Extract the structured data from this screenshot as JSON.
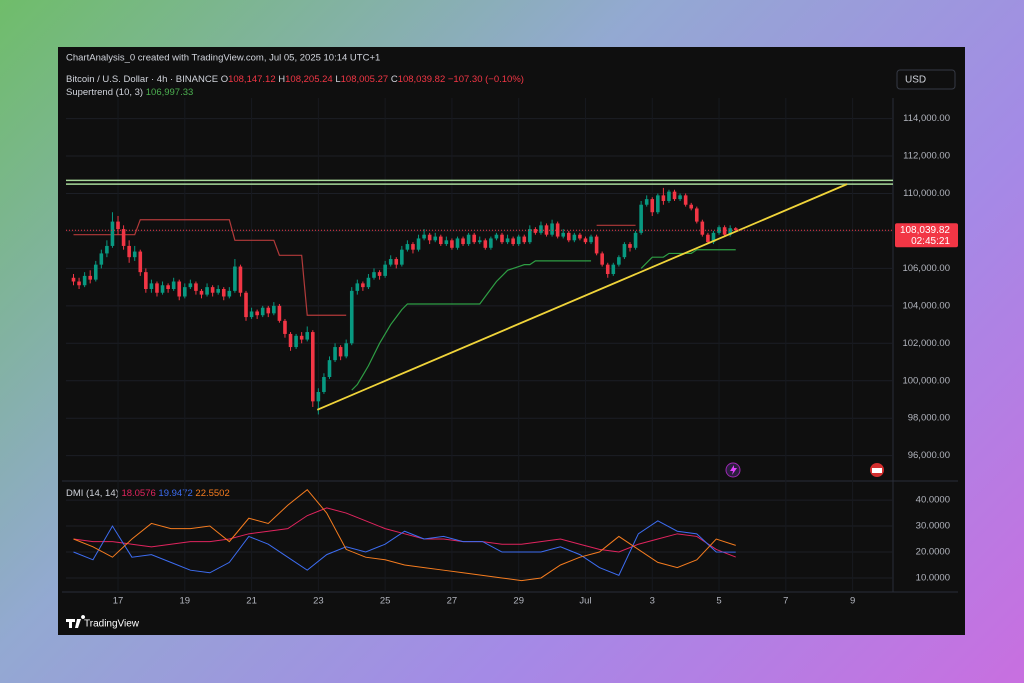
{
  "watermark": "ChartAnalysis_0 created with TradingView.com, Jul 05, 2025 10:14 UTC+1",
  "footer": "TradingView",
  "chart_data": {
    "type": "candlestick",
    "legend": {
      "symbol": "Bitcoin / U.S. Dollar · 4h · BINANCE",
      "o": "O",
      "open": "108,147.12",
      "h": "H",
      "high": "108,205.24",
      "l": "L",
      "low": "108,005.27",
      "c": "C",
      "close": "108,039.82",
      "change": "−107.30 (−0.10%)"
    },
    "currency": "USD",
    "up_color": "#089981",
    "down_color": "#f23645",
    "ylim": [
      94700,
      115100
    ],
    "yticks": [
      {
        "value": 96000,
        "label": "96,000.00"
      },
      {
        "value": 98000,
        "label": "98,000.00"
      },
      {
        "value": 100000,
        "label": "100,000.00"
      },
      {
        "value": 102000,
        "label": "102,000.00"
      },
      {
        "value": 104000,
        "label": "104,000.00"
      },
      {
        "value": 106000,
        "label": "106,000.00"
      },
      {
        "value": 108000,
        "label": "108,000.00"
      },
      {
        "value": 110000,
        "label": "110,000.00"
      },
      {
        "value": 112000,
        "label": "112,000.00"
      },
      {
        "value": 114000,
        "label": "114,000.00"
      }
    ],
    "xtick_labels": [
      "17",
      "19",
      "21",
      "23",
      "25",
      "27",
      "29",
      "Jul",
      "3",
      "5",
      "7",
      "9"
    ],
    "price_label": "108,039.82",
    "countdown": "02:45:21",
    "candles": [
      [
        105500,
        105700,
        105100,
        105300
      ],
      [
        105300,
        105500,
        104900,
        105100
      ],
      [
        105100,
        105800,
        105000,
        105600
      ],
      [
        105600,
        105900,
        105200,
        105400
      ],
      [
        105400,
        106400,
        105300,
        106200
      ],
      [
        106200,
        107000,
        106000,
        106800
      ],
      [
        106800,
        107500,
        106600,
        107200
      ],
      [
        107200,
        109000,
        107100,
        108500
      ],
      [
        108500,
        108800,
        107800,
        108100
      ],
      [
        108100,
        108300,
        107000,
        107200
      ],
      [
        107200,
        107500,
        106300,
        106600
      ],
      [
        106600,
        107200,
        106400,
        106900
      ],
      [
        106900,
        107000,
        105600,
        105800
      ],
      [
        105800,
        106000,
        104700,
        104900
      ],
      [
        104900,
        105400,
        104700,
        105200
      ],
      [
        105200,
        105300,
        104500,
        104700
      ],
      [
        104700,
        105300,
        104600,
        105100
      ],
      [
        105100,
        105200,
        104700,
        104900
      ],
      [
        104900,
        105500,
        104800,
        105300
      ],
      [
        105300,
        105400,
        104300,
        104500
      ],
      [
        104500,
        105200,
        104400,
        105000
      ],
      [
        105000,
        105400,
        104900,
        105200
      ],
      [
        105200,
        105300,
        104600,
        104800
      ],
      [
        104800,
        104900,
        104400,
        104600
      ],
      [
        104600,
        105200,
        104500,
        105000
      ],
      [
        105000,
        105100,
        104500,
        104700
      ],
      [
        104700,
        105100,
        104600,
        104900
      ],
      [
        104900,
        105000,
        104300,
        104500
      ],
      [
        104500,
        105000,
        104400,
        104800
      ],
      [
        104800,
        106500,
        104700,
        106100
      ],
      [
        106100,
        106200,
        104500,
        104700
      ],
      [
        104700,
        104800,
        103200,
        103400
      ],
      [
        103400,
        103900,
        103300,
        103700
      ],
      [
        103700,
        103800,
        103300,
        103500
      ],
      [
        103500,
        104000,
        103400,
        103900
      ],
      [
        103900,
        104000,
        103400,
        103600
      ],
      [
        103600,
        104200,
        103500,
        104000
      ],
      [
        104000,
        104100,
        103100,
        103200
      ],
      [
        103200,
        103300,
        102300,
        102500
      ],
      [
        102500,
        102600,
        101600,
        101800
      ],
      [
        101800,
        102500,
        101700,
        102400
      ],
      [
        102400,
        102600,
        102000,
        102200
      ],
      [
        102200,
        102900,
        102100,
        102600
      ],
      [
        102600,
        102700,
        98600,
        98900
      ],
      [
        98900,
        99600,
        98200,
        99400
      ],
      [
        99400,
        100400,
        99300,
        100200
      ],
      [
        100200,
        101300,
        100100,
        101100
      ],
      [
        101100,
        102000,
        101000,
        101800
      ],
      [
        101800,
        101900,
        101100,
        101300
      ],
      [
        101300,
        102200,
        101200,
        102000
      ],
      [
        102000,
        105000,
        101900,
        104800
      ],
      [
        104800,
        105400,
        104600,
        105200
      ],
      [
        105200,
        105300,
        104800,
        105000
      ],
      [
        105000,
        105700,
        104900,
        105500
      ],
      [
        105500,
        106000,
        105400,
        105800
      ],
      [
        105800,
        105900,
        105400,
        105600
      ],
      [
        105600,
        106400,
        105500,
        106200
      ],
      [
        106200,
        106700,
        106100,
        106500
      ],
      [
        106500,
        106600,
        106000,
        106200
      ],
      [
        106200,
        107200,
        106100,
        107000
      ],
      [
        107000,
        107500,
        106900,
        107300
      ],
      [
        107300,
        107400,
        106800,
        107000
      ],
      [
        107000,
        107800,
        106900,
        107600
      ],
      [
        107600,
        108100,
        107500,
        107800
      ],
      [
        107800,
        107900,
        107300,
        107500
      ],
      [
        107500,
        107900,
        107400,
        107700
      ],
      [
        107700,
        107800,
        107200,
        107300
      ],
      [
        107300,
        107700,
        107200,
        107500
      ],
      [
        107500,
        107600,
        107000,
        107100
      ],
      [
        107100,
        107700,
        107000,
        107600
      ],
      [
        107600,
        107700,
        107200,
        107300
      ],
      [
        107300,
        107900,
        107200,
        107800
      ],
      [
        107800,
        107900,
        107300,
        107400
      ],
      [
        107400,
        107700,
        107300,
        107500
      ],
      [
        107500,
        107600,
        107000,
        107100
      ],
      [
        107100,
        107700,
        107000,
        107600
      ],
      [
        107600,
        107900,
        107500,
        107800
      ],
      [
        107800,
        107900,
        107300,
        107400
      ],
      [
        107400,
        107800,
        107300,
        107600
      ],
      [
        107600,
        107700,
        107200,
        107300
      ],
      [
        107300,
        107800,
        107200,
        107700
      ],
      [
        107700,
        107800,
        107300,
        107400
      ],
      [
        107400,
        108300,
        107300,
        108100
      ],
      [
        108100,
        108200,
        107800,
        107900
      ],
      [
        107900,
        108500,
        107800,
        108300
      ],
      [
        108300,
        108400,
        107700,
        107800
      ],
      [
        107800,
        108600,
        107700,
        108400
      ],
      [
        108400,
        108500,
        107600,
        107700
      ],
      [
        107700,
        108100,
        107600,
        107900
      ],
      [
        107900,
        108000,
        107400,
        107500
      ],
      [
        107500,
        107900,
        107400,
        107800
      ],
      [
        107800,
        107900,
        107500,
        107600
      ],
      [
        107600,
        107700,
        107300,
        107400
      ],
      [
        107400,
        107800,
        107300,
        107700
      ],
      [
        107700,
        107800,
        106700,
        106800
      ],
      [
        106800,
        106900,
        106100,
        106200
      ],
      [
        106200,
        106300,
        105500,
        105700
      ],
      [
        105700,
        106300,
        105600,
        106200
      ],
      [
        106200,
        106700,
        106100,
        106600
      ],
      [
        106600,
        107400,
        106500,
        107300
      ],
      [
        107300,
        107400,
        106900,
        107100
      ],
      [
        107100,
        108000,
        107000,
        107900
      ],
      [
        107900,
        109600,
        107800,
        109400
      ],
      [
        109400,
        109900,
        109300,
        109700
      ],
      [
        109700,
        109800,
        108800,
        109000
      ],
      [
        109000,
        110000,
        108900,
        109900
      ],
      [
        109900,
        110300,
        109400,
        109600
      ],
      [
        109600,
        110200,
        109500,
        110100
      ],
      [
        110100,
        110200,
        109600,
        109700
      ],
      [
        109700,
        110000,
        109600,
        109900
      ],
      [
        109900,
        110000,
        109300,
        109400
      ],
      [
        109400,
        109500,
        109100,
        109200
      ],
      [
        109200,
        109300,
        108400,
        108500
      ],
      [
        108500,
        108600,
        107700,
        107800
      ],
      [
        107800,
        107900,
        107300,
        107400
      ],
      [
        107400,
        108000,
        107300,
        107900
      ],
      [
        107900,
        108300,
        107800,
        108200
      ],
      [
        108200,
        108300,
        107700,
        107800
      ],
      [
        107800,
        108300,
        107700,
        108147.12
      ],
      [
        108147.12,
        108205.24,
        108005.27,
        108039.82
      ]
    ],
    "supertrend": {
      "name": "Supertrend (10, 3)",
      "value_label": "106,997.33",
      "up_color": "#2e9e44",
      "down_color": "#b23a3a",
      "up": [
        null,
        null,
        null,
        null,
        null,
        null,
        null,
        null,
        null,
        null,
        null,
        null,
        null,
        null,
        null,
        null,
        null,
        null,
        null,
        null,
        null,
        null,
        null,
        null,
        null,
        null,
        null,
        null,
        null,
        null,
        null,
        null,
        null,
        null,
        null,
        null,
        null,
        null,
        null,
        null,
        null,
        null,
        null,
        null,
        null,
        null,
        null,
        null,
        null,
        null,
        99500,
        99800,
        100300,
        100800,
        101400,
        102000,
        102500,
        103000,
        103400,
        103800,
        104100,
        104100,
        104100,
        104100,
        104100,
        104100,
        104100,
        104100,
        104100,
        104100,
        104100,
        104100,
        104100,
        104100,
        104500,
        104900,
        105300,
        105600,
        105900,
        106000,
        106100,
        106200,
        106200,
        106400,
        106400,
        106400,
        106400,
        106400,
        106400,
        106400,
        106400,
        106400,
        106400,
        106400,
        null,
        null,
        null,
        null,
        null,
        null,
        null,
        null,
        106000,
        106300,
        106600,
        106600,
        106600,
        106800,
        106800,
        106800,
        106800,
        106800,
        106997.33,
        106997.33,
        106997.33,
        106997.33,
        106997.33,
        106997.33,
        106997.33,
        106997.33
      ],
      "down": [
        107800,
        107800,
        107800,
        107800,
        107800,
        107800,
        107800,
        107800,
        107800,
        107800,
        107800,
        107800,
        108600,
        108600,
        108600,
        108600,
        108600,
        108600,
        108600,
        108600,
        108600,
        108600,
        108600,
        108600,
        108600,
        108600,
        108600,
        108600,
        108600,
        107500,
        107500,
        107500,
        107500,
        107500,
        107500,
        107500,
        107500,
        106700,
        106700,
        106700,
        106700,
        106700,
        103500,
        103500,
        103500,
        103500,
        103500,
        103500,
        103500,
        103500,
        null,
        null,
        null,
        null,
        null,
        null,
        null,
        null,
        null,
        null,
        null,
        null,
        null,
        null,
        null,
        null,
        null,
        null,
        null,
        null,
        null,
        null,
        null,
        null,
        null,
        null,
        null,
        null,
        null,
        null,
        null,
        null,
        null,
        null,
        null,
        null,
        null,
        null,
        null,
        null,
        null,
        null,
        null,
        null,
        108300,
        108300,
        108300,
        108300,
        108300,
        108300,
        108300,
        108300,
        null,
        null,
        null,
        null,
        null,
        null,
        null,
        null,
        null,
        null,
        null,
        null,
        null,
        null,
        null,
        null,
        null,
        null
      ]
    },
    "levels": {
      "values": [
        110700,
        110500
      ],
      "color": "#a8d99a"
    },
    "trendline": {
      "values": [
        98450,
        110500
      ],
      "color": "#f0d43a"
    },
    "dmi": {
      "name": "DMI (14, 14)",
      "ylim": [
        4.6,
        45.8
      ],
      "yticks": [
        {
          "value": 10,
          "label": "10.0000"
        },
        {
          "value": 20,
          "label": "20.0000"
        },
        {
          "value": 30,
          "label": "30.0000"
        },
        {
          "value": 40,
          "label": "40.0000"
        }
      ],
      "series": [
        {
          "name": "18.0576",
          "color": "#e0245e",
          "values": [
            25,
            24,
            24,
            23,
            22,
            23,
            24,
            24,
            25,
            27,
            28,
            29,
            34,
            37,
            35,
            32,
            29,
            27,
            25,
            25,
            24,
            24,
            23,
            23,
            24,
            25,
            23,
            21,
            20,
            23,
            25,
            27,
            26,
            21,
            18.0576
          ]
        },
        {
          "name": "19.9472",
          "color": "#3d6df2",
          "values": [
            20,
            17,
            30,
            18,
            19,
            16,
            13,
            12,
            16,
            26,
            23,
            18,
            13,
            19,
            22,
            20,
            23,
            28,
            25,
            26,
            24,
            24,
            20,
            20,
            20,
            22,
            19,
            14,
            11,
            27,
            32,
            28,
            27,
            20,
            19.9472
          ]
        },
        {
          "name": "22.5502",
          "color": "#f57c1f",
          "values": [
            25,
            22,
            18,
            25,
            31,
            29,
            29,
            30,
            24,
            33,
            31,
            38,
            44,
            35,
            21,
            18,
            17,
            15,
            14,
            13,
            12,
            11,
            10,
            9,
            10,
            15,
            18,
            20,
            26,
            21,
            16,
            14,
            17,
            25,
            22.5502
          ]
        }
      ]
    }
  }
}
